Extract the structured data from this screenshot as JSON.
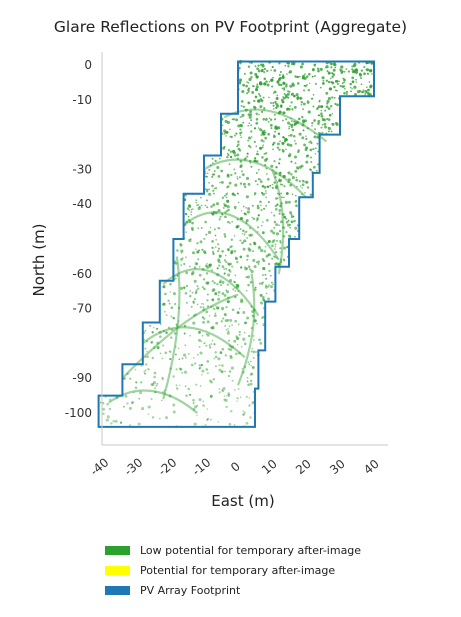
{
  "chart_data": {
    "type": "scatter",
    "title": "Glare Reflections on PV Footprint (Aggregate)",
    "xlabel": "East (m)",
    "ylabel": "North (m)",
    "xlim": [
      -42,
      45
    ],
    "ylim": [
      -106,
      3
    ],
    "x_ticks": [
      "-40",
      "-30",
      "-20",
      "-10",
      "0",
      "10",
      "20",
      "30",
      "40"
    ],
    "y_ticks": [
      "0",
      "-10",
      "-30",
      "-40",
      "-60",
      "-70",
      "-90",
      "-100"
    ],
    "series": [
      {
        "name": "Low potential for temporary after-image",
        "color": "#2ca02c"
      },
      {
        "name": "Potential for temporary after-image",
        "color": "#ffff00"
      },
      {
        "name": "PV Array Footprint",
        "color": "#1f77b4"
      }
    ],
    "footprint_outline": [
      [
        0,
        1
      ],
      [
        40,
        1
      ],
      [
        40,
        -9
      ],
      [
        30,
        -9
      ],
      [
        30,
        -20
      ],
      [
        24,
        -20
      ],
      [
        24,
        -31
      ],
      [
        22,
        -31
      ],
      [
        22,
        -38
      ],
      [
        18,
        -38
      ],
      [
        18,
        -50
      ],
      [
        15,
        -50
      ],
      [
        15,
        -58
      ],
      [
        11,
        -58
      ],
      [
        11,
        -68
      ],
      [
        8,
        -68
      ],
      [
        8,
        -82
      ],
      [
        6,
        -82
      ],
      [
        6,
        -93
      ],
      [
        5,
        -93
      ],
      [
        5,
        -104
      ],
      [
        -41,
        -104
      ],
      [
        -41,
        -95
      ],
      [
        -34,
        -95
      ],
      [
        -34,
        -86
      ],
      [
        -28,
        -86
      ],
      [
        -28,
        -74
      ],
      [
        -23,
        -74
      ],
      [
        -23,
        -62
      ],
      [
        -19,
        -62
      ],
      [
        -19,
        -50
      ],
      [
        -16,
        -50
      ],
      [
        -16,
        -37
      ],
      [
        -10,
        -37
      ],
      [
        -10,
        -26
      ],
      [
        -5,
        -26
      ],
      [
        -5,
        -14
      ],
      [
        0,
        -14
      ],
      [
        0,
        1
      ]
    ]
  }
}
